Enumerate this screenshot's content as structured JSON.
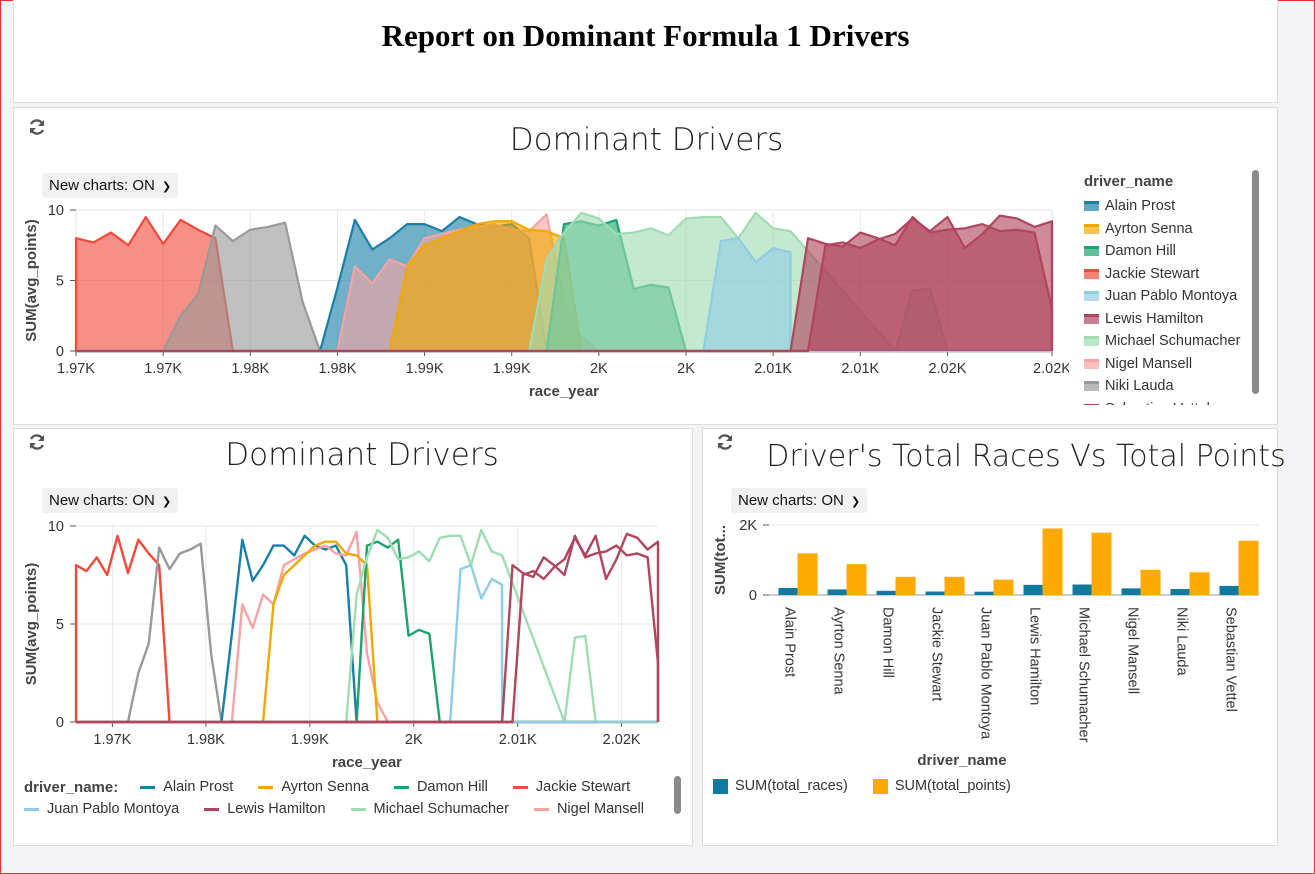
{
  "report": {
    "title": "Report on Dominant Formula 1 Drivers"
  },
  "panels": {
    "area": {
      "title": "Dominant Drivers",
      "new_charts": "New charts: ON"
    },
    "line": {
      "title": "Dominant Drivers",
      "new_charts": "New charts: ON"
    },
    "bar": {
      "title": "Driver's Total Races Vs Total Points",
      "new_charts": "New charts: ON"
    }
  },
  "icons": {
    "refresh": "refresh-icon",
    "dropdown": "chevron-down-icon"
  },
  "colors": {
    "Alain Prost": "#1a7fa6",
    "Ayrton Senna": "#f0a800",
    "Damon Hill": "#1aa36e",
    "Jackie Stewart": "#f04a3a",
    "Juan Pablo Montoya": "#8fcde4",
    "Lewis Hamilton": "#b0455e",
    "Michael Schumacher": "#9fdcb2",
    "Nigel Mansell": "#f7a3a3",
    "Niki Lauda": "#999999",
    "Sebastian Vettel": "#b0455e",
    "total_races": "#0e7a9e",
    "total_points": "#ffaa00"
  },
  "legend_area": {
    "title": "driver_name",
    "items": [
      "Alain Prost",
      "Ayrton Senna",
      "Damon Hill",
      "Jackie Stewart",
      "Juan Pablo Montoya",
      "Lewis Hamilton",
      "Michael Schumacher",
      "Nigel Mansell",
      "Niki Lauda",
      "Sebastian Vettel"
    ]
  },
  "legend_line": {
    "title": "driver_name:",
    "row1": [
      "Alain Prost",
      "Ayrton Senna",
      "Damon Hill",
      "Jackie Stewart"
    ],
    "row2": [
      "Juan Pablo Montoya",
      "Lewis Hamilton",
      "Michael Schumacher",
      "Nigel Mansell"
    ]
  },
  "legend_bar": {
    "items": [
      "SUM(total_races)",
      "SUM(total_points)"
    ]
  },
  "chart_data": [
    {
      "type": "area",
      "title": "Dominant Drivers",
      "xlabel": "race_year",
      "ylabel": "SUM(avg_points)",
      "xlim": [
        1965,
        2021
      ],
      "ylim": [
        0,
        10
      ],
      "yticks": [
        0,
        5,
        10
      ],
      "xticks": [
        {
          "v": 1965,
          "label": "1.97K"
        },
        {
          "v": 1970,
          "label": "1.97K"
        },
        {
          "v": 1975,
          "label": "1.98K"
        },
        {
          "v": 1980,
          "label": "1.98K"
        },
        {
          "v": 1985,
          "label": "1.99K"
        },
        {
          "v": 1990,
          "label": "1.99K"
        },
        {
          "v": 1995,
          "label": "2K"
        },
        {
          "v": 2000,
          "label": "2K"
        },
        {
          "v": 2005,
          "label": "2.01K"
        },
        {
          "v": 2010,
          "label": "2.01K"
        },
        {
          "v": 2015,
          "label": "2.02K"
        },
        {
          "v": 2021,
          "label": "2.02K"
        }
      ],
      "grid": true,
      "legend": "right"
    },
    {
      "type": "line",
      "title": "Dominant Drivers",
      "xlabel": "race_year",
      "ylabel": "SUM(avg_points)",
      "xlim": [
        1965,
        2021
      ],
      "ylim": [
        0,
        10
      ],
      "yticks": [
        0,
        5,
        10
      ],
      "xticks": [
        {
          "v": 1968.5,
          "label": "1.97K"
        },
        {
          "v": 1977.5,
          "label": "1.98K"
        },
        {
          "v": 1987.5,
          "label": "1.99K"
        },
        {
          "v": 1997.5,
          "label": "2K"
        },
        {
          "v": 2007.5,
          "label": "2.01K"
        },
        {
          "v": 2017.5,
          "label": "2.02K"
        }
      ],
      "grid": true,
      "legend": "bottom",
      "series": [
        {
          "name": "Jackie Stewart",
          "x": [
            1965,
            1966,
            1967,
            1968,
            1969,
            1970,
            1971,
            1972,
            1973,
            1974
          ],
          "y": [
            8,
            7.7,
            8.4,
            7.5,
            9.5,
            7.6,
            9.3,
            8.6,
            8,
            0
          ]
        },
        {
          "name": "Niki Lauda",
          "x": [
            1970,
            1971,
            1972,
            1973,
            1974,
            1975,
            1976,
            1977,
            1978,
            1979
          ],
          "y": [
            0,
            2.5,
            4,
            8.9,
            7.8,
            8.6,
            8.8,
            9.1,
            3.5,
            0
          ]
        },
        {
          "name": "Alain Prost",
          "x": [
            1979,
            1980,
            1981,
            1982,
            1983,
            1984,
            1985,
            1986,
            1987,
            1988,
            1989,
            1990,
            1991,
            1992
          ],
          "y": [
            0,
            4.5,
            9.3,
            7.2,
            8.0,
            9.0,
            9.0,
            8.5,
            9.5,
            9.0,
            8.8,
            9.0,
            8.0,
            0
          ]
        },
        {
          "name": "Nigel Mansell",
          "x": [
            1980,
            1981,
            1982,
            1983,
            1984,
            1985,
            1986,
            1987,
            1988,
            1989,
            1990,
            1991,
            1992,
            1993,
            1994,
            1995
          ],
          "y": [
            0,
            6.0,
            4.8,
            6.5,
            6.0,
            8.0,
            8.3,
            8.6,
            8.8,
            9.0,
            8.6,
            8.5,
            9.7,
            3.5,
            1.0,
            0
          ]
        },
        {
          "name": "Ayrton Senna",
          "x": [
            1983,
            1984,
            1985,
            1986,
            1987,
            1988,
            1989,
            1990,
            1991,
            1992,
            1993,
            1994
          ],
          "y": [
            0,
            6.0,
            7.5,
            8.0,
            8.5,
            9.0,
            9.2,
            9.2,
            8.6,
            8.5,
            8.0,
            0
          ]
        },
        {
          "name": "Damon Hill",
          "x": [
            1992,
            1993,
            1994,
            1995,
            1996,
            1997,
            1998,
            1999,
            2000
          ],
          "y": [
            0,
            9.0,
            9.2,
            8.9,
            9.3,
            4.4,
            4.7,
            4.5,
            0
          ]
        },
        {
          "name": "Michael Schumacher",
          "x": [
            1991,
            1992,
            1993,
            1994,
            1995,
            1996,
            1997,
            1998,
            1999,
            2000,
            2001,
            2002,
            2003,
            2004,
            2005,
            2006,
            2012,
            2013,
            2014,
            2015
          ],
          "y": [
            0,
            6.5,
            8.4,
            9.8,
            9.4,
            8.3,
            8.4,
            8.7,
            8.2,
            9.4,
            9.5,
            9.5,
            8.0,
            9.8,
            8.7,
            8.5,
            0,
            4.3,
            4.4,
            0
          ]
        },
        {
          "name": "Juan Pablo Montoya",
          "x": [
            2001,
            2002,
            2003,
            2004,
            2005,
            2006
          ],
          "y": [
            0,
            7.8,
            8.0,
            6.3,
            7.3,
            7.0
          ]
        },
        {
          "name": "Sebastian Vettel",
          "x": [
            2006,
            2007,
            2008,
            2009,
            2010,
            2011,
            2012,
            2013,
            2014,
            2015,
            2016,
            2017,
            2018,
            2019,
            2020,
            2021
          ],
          "y": [
            0,
            8.0,
            7.6,
            7.4,
            8.4,
            8.0,
            7.5,
            9.5,
            8.4,
            8.6,
            8.7,
            9.0,
            8.5,
            8.6,
            8.4,
            3.0
          ]
        },
        {
          "name": "Lewis Hamilton",
          "x": [
            2007,
            2008,
            2009,
            2010,
            2011,
            2012,
            2013,
            2014,
            2015,
            2016,
            2017,
            2018,
            2019,
            2020,
            2021
          ],
          "y": [
            0,
            7.5,
            7.7,
            7.3,
            7.9,
            8.3,
            9.4,
            8.5,
            9.5,
            7.3,
            8.3,
            9.6,
            9.4,
            8.8,
            9.2
          ]
        }
      ]
    },
    {
      "type": "bar",
      "title": "Driver's Total Races Vs Total Points",
      "xlabel": "driver_name",
      "ylabel": "SUM(tot...",
      "ylim": [
        0,
        2000
      ],
      "yticks": [
        {
          "v": 0,
          "label": "0"
        },
        {
          "v": 2000,
          "label": "2K"
        }
      ],
      "categories": [
        "Alain Prost",
        "Ayrton Senna",
        "Damon Hill",
        "Jackie Stewart",
        "Juan Pablo Montoya",
        "Lewis Hamilton",
        "Michael Schumacher",
        "Nigel Mansell",
        "Niki Lauda",
        "Sebastian Vettel"
      ],
      "series": [
        {
          "name": "SUM(total_races)",
          "values": [
            200,
            160,
            120,
            100,
            95,
            290,
            300,
            190,
            170,
            260
          ]
        },
        {
          "name": "SUM(total_points)",
          "values": [
            1190,
            880,
            520,
            520,
            440,
            1900,
            1780,
            720,
            650,
            1550
          ]
        }
      ],
      "legend": "bottom-left"
    }
  ]
}
